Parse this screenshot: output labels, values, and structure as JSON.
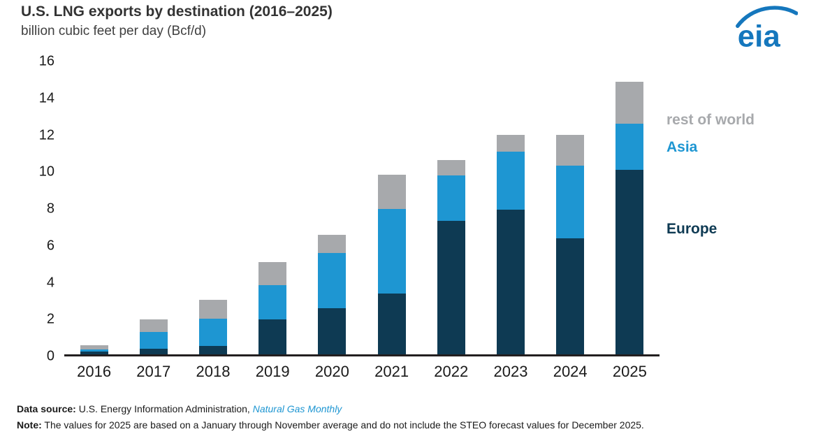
{
  "header": {
    "title": "U.S. LNG exports by destination (2016–2025)",
    "subtitle": "billion cubic feet per day (Bcf/d)",
    "logo_text": "eia",
    "logo_color": "#1577bd"
  },
  "chart_data": {
    "type": "bar",
    "stacked": true,
    "title": "U.S. LNG exports by destination (2016–2025)",
    "ylabel": "billion cubic feet per day (Bcf/d)",
    "categories": [
      "2016",
      "2017",
      "2018",
      "2019",
      "2020",
      "2021",
      "2022",
      "2023",
      "2024",
      "2025"
    ],
    "series": [
      {
        "name": "Europe",
        "color": "#0e3a53",
        "values": [
          0.15,
          0.3,
          0.45,
          1.9,
          2.5,
          3.3,
          7.25,
          7.85,
          6.3,
          10.0
        ]
      },
      {
        "name": "Asia",
        "color": "#1e96d2",
        "values": [
          0.1,
          0.9,
          1.5,
          1.85,
          3.0,
          4.6,
          2.45,
          3.15,
          3.95,
          2.5
        ]
      },
      {
        "name": "rest of world",
        "color": "#a7a9ac",
        "values": [
          0.25,
          0.7,
          1.0,
          1.25,
          1.0,
          1.85,
          0.85,
          0.9,
          1.65,
          2.3
        ]
      }
    ],
    "totals": [
      0.5,
      1.9,
      2.95,
      5.0,
      6.5,
      9.75,
      10.55,
      11.9,
      11.9,
      14.8
    ],
    "ylim": [
      0,
      16
    ],
    "yticks": [
      0,
      2,
      4,
      6,
      8,
      10,
      12,
      14,
      16
    ],
    "grid": false,
    "legend_position": "right"
  },
  "legend": {
    "rest_of_world": "rest of world",
    "asia": "Asia",
    "europe": "Europe"
  },
  "footer": {
    "source_label": "Data source:",
    "source_text": " U.S. Energy Information Administration, ",
    "source_publication": "Natural Gas Monthly",
    "note_label": "Note:",
    "note_text": " The values for 2025 are based on a January through November average and do not include the STEO forecast values for December 2025."
  }
}
